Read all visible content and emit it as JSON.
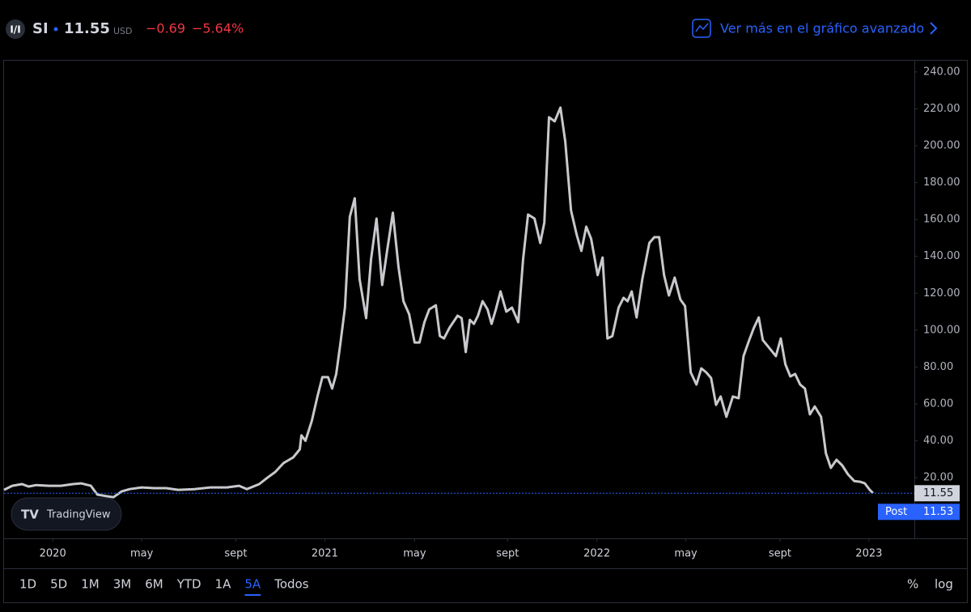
{
  "header": {
    "symbol": "SI",
    "price": "11.55",
    "currency": "USD",
    "change": "−0.69",
    "change_pct": "−5.64%",
    "link": "Ver más en el gráfico avanzado"
  },
  "toolbar": {
    "ranges": [
      "1D",
      "5D",
      "1M",
      "3M",
      "6M",
      "YTD",
      "1A",
      "5A",
      "Todos"
    ],
    "active": 7,
    "percent": "%",
    "log": "log"
  },
  "watermark": "TradingView",
  "chart_data": {
    "type": "line",
    "color": "#c8c9cc",
    "grid": false,
    "log_scale": false,
    "x": [
      2019.821,
      2019.851,
      2019.887,
      2019.911,
      2019.94,
      2019.985,
      2020.03,
      2020.074,
      2020.104,
      2020.14,
      2020.164,
      2020.202,
      2020.223,
      2020.253,
      2020.283,
      2020.327,
      2020.372,
      2020.417,
      2020.461,
      2020.521,
      2020.58,
      2020.64,
      2020.685,
      2020.714,
      2020.759,
      2020.789,
      2020.818,
      2020.848,
      2020.884,
      2020.908,
      2020.914,
      2020.929,
      2020.952,
      2020.973,
      2020.991,
      2021.012,
      2021.027,
      2021.042,
      2021.057,
      2021.074,
      2021.092,
      2021.11,
      2021.128,
      2021.152,
      2021.17,
      2021.19,
      2021.211,
      2021.229,
      2021.25,
      2021.271,
      2021.289,
      2021.31,
      2021.33,
      2021.348,
      2021.366,
      2021.384,
      2021.408,
      2021.423,
      2021.438,
      2021.458,
      2021.488,
      2021.503,
      2021.518,
      2021.533,
      2021.548,
      2021.563,
      2021.58,
      2021.598,
      2021.613,
      2021.628,
      2021.646,
      2021.667,
      2021.688,
      2021.711,
      2021.729,
      2021.747,
      2021.771,
      2021.792,
      2021.807,
      2021.824,
      2021.845,
      2021.866,
      2021.884,
      2021.905,
      2021.926,
      2021.943,
      2021.961,
      2021.979,
      2022.003,
      2022.021,
      2022.039,
      2022.057,
      2022.08,
      2022.098,
      2022.113,
      2022.128,
      2022.146,
      2022.167,
      2022.193,
      2022.211,
      2022.229,
      2022.247,
      2022.265,
      2022.286,
      2022.307,
      2022.324,
      2022.345,
      2022.366,
      2022.384,
      2022.402,
      2022.42,
      2022.438,
      2022.455,
      2022.476,
      2022.5,
      2022.521,
      2022.539,
      2022.56,
      2022.577,
      2022.595,
      2022.61,
      2022.634,
      2022.658,
      2022.676,
      2022.693,
      2022.711,
      2022.729,
      2022.747,
      2022.765,
      2022.783,
      2022.801,
      2022.824,
      2022.842,
      2022.86,
      2022.881,
      2022.902,
      2022.923,
      2022.946,
      2022.967,
      2022.985,
      2023.003,
      2023.015
    ],
    "values": [
      13.4,
      15.6,
      16.5,
      15.2,
      16,
      15.6,
      15.6,
      16.5,
      16.9,
      15.6,
      10.8,
      9.9,
      9.4,
      12.5,
      13.8,
      14.7,
      14.3,
      14.3,
      13.4,
      13.8,
      14.7,
      14.7,
      15.6,
      13.8,
      16.5,
      20,
      23.1,
      27.9,
      31,
      35.4,
      43,
      40,
      50.7,
      64,
      74.5,
      74.5,
      68.3,
      76.2,
      92.5,
      112.2,
      161.4,
      171.5,
      127.6,
      106.5,
      138.6,
      160.5,
      124.5,
      143,
      163.7,
      134.2,
      115.7,
      108.7,
      93.3,
      93.3,
      104.3,
      111.3,
      113.5,
      96.8,
      95.5,
      101.2,
      107.8,
      106.5,
      88.1,
      105.6,
      103.4,
      107.8,
      115.7,
      111.3,
      103.4,
      110.9,
      121,
      110,
      112.2,
      104.3,
      138.6,
      162.7,
      160.5,
      147.3,
      158.3,
      215.4,
      213.2,
      220.7,
      202.2,
      164.9,
      151.7,
      143,
      156.1,
      149.5,
      129.8,
      139.4,
      95.5,
      96.8,
      112.2,
      117.5,
      115.7,
      121,
      106.9,
      127.6,
      147.3,
      150.4,
      150.4,
      129.8,
      118.8,
      128.5,
      116.6,
      113.1,
      77.1,
      70.5,
      79.3,
      77.1,
      74,
      59.5,
      64,
      53,
      64,
      63.1,
      85.9,
      94.6,
      101.2,
      106.9,
      94.6,
      90.3,
      85.9,
      95.5,
      81.5,
      74.9,
      76.2,
      70.5,
      68.3,
      54.3,
      58.6,
      53,
      33.2,
      25.3,
      29.7,
      26.6,
      21.8,
      18.2,
      17.8,
      16.9,
      13.4,
      11.6
    ],
    "xlim": [
      2019.821,
      2023.167
    ],
    "xticks": [
      {
        "value": 2020,
        "label": "2020"
      },
      {
        "value": 2020.327,
        "label": "may"
      },
      {
        "value": 2020.673,
        "label": "sept"
      },
      {
        "value": 2021,
        "label": "2021"
      },
      {
        "value": 2021.33,
        "label": "may"
      },
      {
        "value": 2021.672,
        "label": "sept"
      },
      {
        "value": 2022,
        "label": "2022"
      },
      {
        "value": 2022.327,
        "label": "may"
      },
      {
        "value": 2022.673,
        "label": "sept"
      },
      {
        "value": 2023,
        "label": "2023"
      }
    ],
    "ylim": [
      -12.9,
      246.1
    ],
    "yticks": [
      {
        "value": 20,
        "label": "20.00"
      },
      {
        "value": 40,
        "label": "40.00"
      },
      {
        "value": 60,
        "label": "60.00"
      },
      {
        "value": 80,
        "label": "80.00"
      },
      {
        "value": 100,
        "label": "100.00"
      },
      {
        "value": 120,
        "label": "120.00"
      },
      {
        "value": 140,
        "label": "140.00"
      },
      {
        "value": 160,
        "label": "160.00"
      },
      {
        "value": 180,
        "label": "180.00"
      },
      {
        "value": 200,
        "label": "200.00"
      },
      {
        "value": 220,
        "label": "220.00"
      },
      {
        "value": 240,
        "label": "240.00"
      }
    ],
    "last_price": 11.55,
    "post": {
      "label": "Post",
      "value": 11.53
    }
  }
}
